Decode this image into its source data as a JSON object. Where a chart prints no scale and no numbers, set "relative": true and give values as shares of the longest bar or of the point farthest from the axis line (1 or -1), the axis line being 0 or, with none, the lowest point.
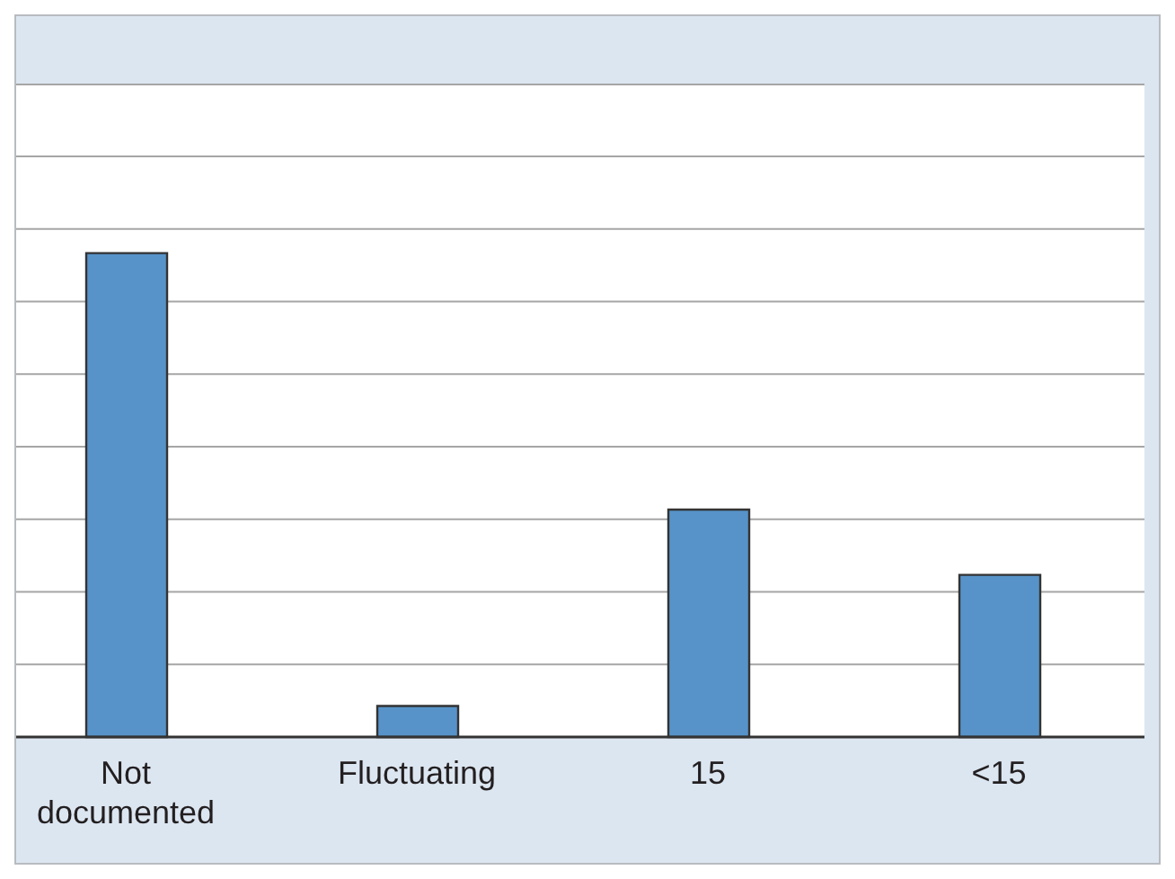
{
  "chart_data": {
    "type": "bar",
    "relative": true,
    "categories": [
      "Not documented",
      "Fluctuating",
      "15",
      "<15"
    ],
    "values": [
      1,
      0.064,
      0.47,
      0.335
    ],
    "color": "#5793c9",
    "grid": "y"
  }
}
